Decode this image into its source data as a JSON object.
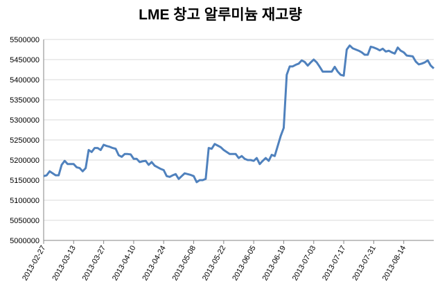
{
  "chart_data": {
    "type": "line",
    "title": "LME 창고 알루미늄 재고량",
    "categories": [
      "2013-02-27",
      null,
      null,
      null,
      null,
      null,
      null,
      null,
      null,
      null,
      "2013-03-13",
      null,
      null,
      null,
      null,
      null,
      null,
      null,
      null,
      null,
      "2013-03-27",
      null,
      null,
      null,
      null,
      null,
      null,
      null,
      null,
      null,
      "2013-04-10",
      null,
      null,
      null,
      null,
      null,
      null,
      null,
      null,
      null,
      "2013-04-24",
      null,
      null,
      null,
      null,
      null,
      null,
      null,
      null,
      null,
      "2013-05-08",
      null,
      null,
      null,
      null,
      null,
      null,
      null,
      null,
      null,
      "2013-05-22",
      null,
      null,
      null,
      null,
      null,
      null,
      null,
      null,
      null,
      "2013-06-05",
      null,
      null,
      null,
      null,
      null,
      null,
      null,
      null,
      null,
      "2013-06-19",
      null,
      null,
      null,
      null,
      null,
      null,
      null,
      null,
      null,
      "2013-07-03",
      null,
      null,
      null,
      null,
      null,
      null,
      null,
      null,
      null,
      "2013-07-17",
      null,
      null,
      null,
      null,
      null,
      null,
      null,
      null,
      null,
      "2013-07-31",
      null,
      null,
      null,
      null,
      null,
      null,
      null,
      null,
      null,
      "2013-08-14",
      null,
      null,
      null,
      null,
      null,
      null,
      null,
      null,
      null,
      null
    ],
    "series": [
      {
        "color": "#4f81bd",
        "values": [
          5160000,
          5162000,
          5172000,
          5167000,
          5162000,
          5162000,
          5188000,
          5198000,
          5190000,
          5190000,
          5190000,
          5182000,
          5180000,
          5172000,
          5180000,
          5225000,
          5220000,
          5230000,
          5230000,
          5225000,
          5238000,
          5235000,
          5233000,
          5230000,
          5228000,
          5212000,
          5208000,
          5215000,
          5215000,
          5214000,
          5203000,
          5203000,
          5195000,
          5197000,
          5198000,
          5188000,
          5195000,
          5186000,
          5182000,
          5178000,
          5175000,
          5160000,
          5158000,
          5162000,
          5165000,
          5153000,
          5160000,
          5167000,
          5165000,
          5163000,
          5160000,
          5145000,
          5150000,
          5150000,
          5153000,
          5230000,
          5228000,
          5240000,
          5236000,
          5232000,
          5225000,
          5220000,
          5215000,
          5215000,
          5215000,
          5205000,
          5210000,
          5203000,
          5200000,
          5200000,
          5198000,
          5205000,
          5190000,
          5198000,
          5205000,
          5198000,
          5213000,
          5210000,
          5235000,
          5260000,
          5280000,
          5412000,
          5433000,
          5433000,
          5437000,
          5440000,
          5448000,
          5444000,
          5435000,
          5443000,
          5450000,
          5443000,
          5432000,
          5420000,
          5420000,
          5420000,
          5420000,
          5432000,
          5420000,
          5412000,
          5410000,
          5475000,
          5485000,
          5478000,
          5475000,
          5472000,
          5468000,
          5462000,
          5462000,
          5482000,
          5480000,
          5477000,
          5473000,
          5477000,
          5470000,
          5472000,
          5468000,
          5465000,
          5480000,
          5472000,
          5468000,
          5460000,
          5459000,
          5458000,
          5445000,
          5438000,
          5440000,
          5443000,
          5448000,
          5435000,
          5428000
        ]
      }
    ],
    "ylim": [
      5000000,
      5500000
    ],
    "yticks": [
      5000000,
      5050000,
      5100000,
      5150000,
      5200000,
      5250000,
      5300000,
      5350000,
      5400000,
      5450000,
      5500000
    ],
    "grid": true
  }
}
